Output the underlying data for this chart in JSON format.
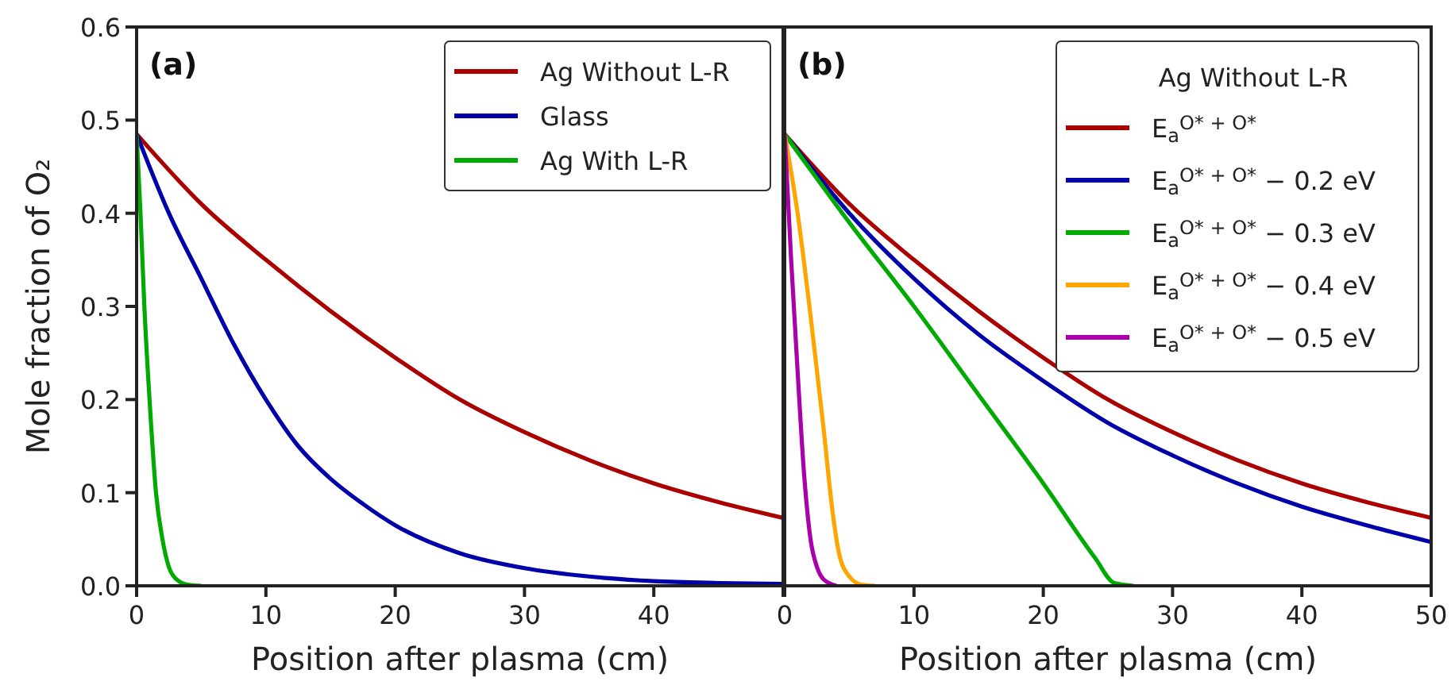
{
  "chart_data": [
    {
      "type": "line",
      "annotations": [
        "(a)"
      ],
      "xlabel": "Position after plasma (cm)",
      "ylabel": "Mole fraction of O₂",
      "xlim": [
        0,
        50
      ],
      "ylim": [
        0,
        0.6
      ],
      "xticks": [
        0,
        10,
        20,
        30,
        40,
        {
          "value": 50,
          "label": null
        }
      ],
      "yticks": [
        {
          "value": 0,
          "label": "0.0"
        },
        0.1,
        0.2,
        0.3,
        0.4,
        0.5,
        0.6
      ],
      "legend": "top right",
      "grid": false,
      "line_style": "solid",
      "series": [
        {
          "name": "Ag Without L-R",
          "color": "#aa0000",
          "x": [
            0,
            5,
            10,
            15,
            20,
            25,
            30,
            35,
            40,
            45,
            50
          ],
          "values": [
            0.485,
            0.41,
            0.35,
            0.295,
            0.245,
            0.2,
            0.165,
            0.135,
            0.11,
            0.09,
            0.073
          ]
        },
        {
          "name": "Glass",
          "color": "#0000aa",
          "x": [
            0,
            2.5,
            5,
            7.5,
            10,
            12.5,
            15,
            17.5,
            20,
            25,
            30,
            35,
            40,
            45,
            50
          ],
          "values": [
            0.485,
            0.4,
            0.33,
            0.26,
            0.2,
            0.15,
            0.115,
            0.088,
            0.065,
            0.035,
            0.019,
            0.01,
            0.005,
            0.003,
            0.002
          ]
        },
        {
          "name": "Ag With L-R",
          "color": "#00aa00",
          "x": [
            0,
            0.3,
            0.6,
            1,
            1.5,
            2,
            2.5,
            3,
            4,
            5
          ],
          "values": [
            0.485,
            0.4,
            0.3,
            0.2,
            0.1,
            0.05,
            0.02,
            0.008,
            0.001,
            0
          ]
        }
      ]
    },
    {
      "type": "line",
      "annotations": [
        "(b)"
      ],
      "xlabel": "Position after plasma (cm)",
      "legend_title": "Ag Without L-R",
      "xlim": [
        0,
        50
      ],
      "ylim": [
        0,
        0.6
      ],
      "xticks": [
        0,
        10,
        20,
        30,
        40,
        50
      ],
      "tick_labels": "x",
      "legend": "top right",
      "grid": false,
      "line_style": "solid",
      "series": [
        {
          "name": "E$_{a}$$^{O* + O*}$",
          "color": "#aa0000",
          "x": [
            0,
            5,
            10,
            15,
            20,
            25,
            30,
            35,
            40,
            45,
            50
          ],
          "values": [
            0.485,
            0.41,
            0.35,
            0.295,
            0.245,
            0.2,
            0.165,
            0.135,
            0.11,
            0.09,
            0.073
          ]
        },
        {
          "name": "E$_{a}$$^{O* + O*}$ − 0.2 eV",
          "color": "#0000aa",
          "x": [
            0,
            5,
            10,
            15,
            20,
            25,
            30,
            35,
            40,
            45,
            50
          ],
          "values": [
            0.485,
            0.4,
            0.33,
            0.27,
            0.22,
            0.175,
            0.14,
            0.11,
            0.085,
            0.065,
            0.047
          ]
        },
        {
          "name": "E$_{a}$$^{O* + O*}$ − 0.3 eV",
          "color": "#00aa00",
          "x": [
            0,
            5,
            10,
            15,
            20,
            24,
            25.5,
            27
          ],
          "values": [
            0.485,
            0.39,
            0.3,
            0.205,
            0.11,
            0.03,
            0.003,
            0
          ]
        },
        {
          "name": "E$_{a}$$^{O* + O*}$ − 0.4 eV",
          "color": "#ffa500",
          "x": [
            0,
            1,
            2,
            3,
            3.7,
            4.2,
            5,
            6,
            7
          ],
          "values": [
            0.485,
            0.4,
            0.29,
            0.17,
            0.08,
            0.035,
            0.01,
            0.001,
            0
          ]
        },
        {
          "name": "E$_{a}$$^{O* + O*}$ − 0.5 eV",
          "color": "#aa00aa",
          "x": [
            0,
            0.5,
            1,
            1.5,
            2,
            2.5,
            3,
            4
          ],
          "values": [
            0.485,
            0.35,
            0.23,
            0.12,
            0.05,
            0.02,
            0.007,
            0
          ]
        }
      ]
    }
  ]
}
